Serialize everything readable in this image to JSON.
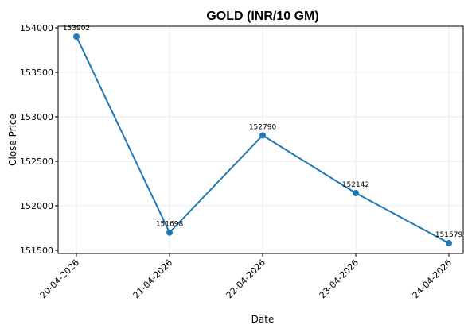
{
  "chart_data": {
    "type": "line",
    "title": "GOLD (INR/10 GM)",
    "x_label": "Date",
    "y_label": "Close Price",
    "categories": [
      "20-04-2026",
      "21-04-2026",
      "22-04-2026",
      "23-04-2026",
      "24-04-2026"
    ],
    "series": [
      {
        "name": "Close Price",
        "color": "#1f77b4",
        "values": [
          153902,
          151698,
          152790,
          152142,
          151579
        ]
      }
    ],
    "ylim": [
      151463,
      154018
    ],
    "yticks": [
      151500,
      152000,
      152500,
      153000,
      153500,
      154000
    ],
    "grid": true
  }
}
